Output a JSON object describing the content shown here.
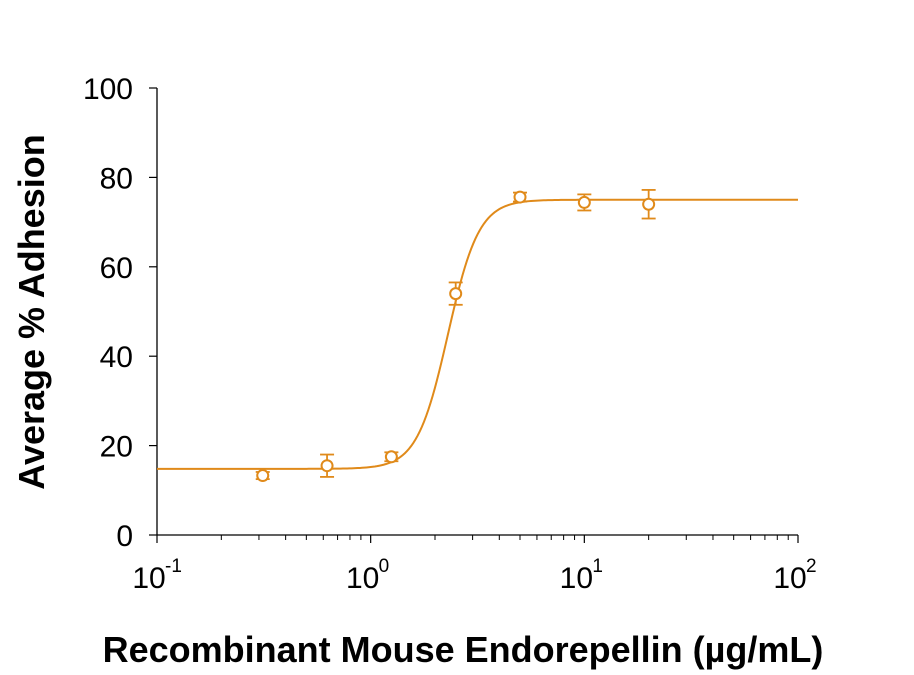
{
  "chart_data": {
    "type": "scatter",
    "title": "",
    "xlabel": "Recombinant Mouse Endorepellin (µg/mL)",
    "ylabel": "Average % Adhesion",
    "x_scale": "log",
    "xlim": [
      0.1,
      100
    ],
    "ylim": [
      0,
      100
    ],
    "y_ticks": [
      "0",
      "20",
      "40",
      "60",
      "80",
      "100"
    ],
    "x_ticks": [
      {
        "value": 0.1,
        "base": "10",
        "exp": "-1"
      },
      {
        "value": 1,
        "base": "10",
        "exp": "0"
      },
      {
        "value": 10,
        "base": "10",
        "exp": "1"
      },
      {
        "value": 100,
        "base": "10",
        "exp": "2"
      }
    ],
    "grid": false,
    "color": "#E08A1A",
    "series": [
      {
        "x": [
          0.3125,
          0.625,
          1.25,
          2.5,
          5,
          10,
          20
        ],
        "y": [
          13.3,
          15.5,
          17.5,
          54.0,
          75.6,
          74.4,
          74.0
        ],
        "error": [
          0.8,
          2.5,
          1.0,
          2.5,
          1.0,
          1.8,
          3.2
        ]
      }
    ],
    "fit_curve": {
      "model": "4PL",
      "bottom": 14.8,
      "top": 75.0,
      "ec50": 2.3,
      "hill": 6.0
    }
  }
}
